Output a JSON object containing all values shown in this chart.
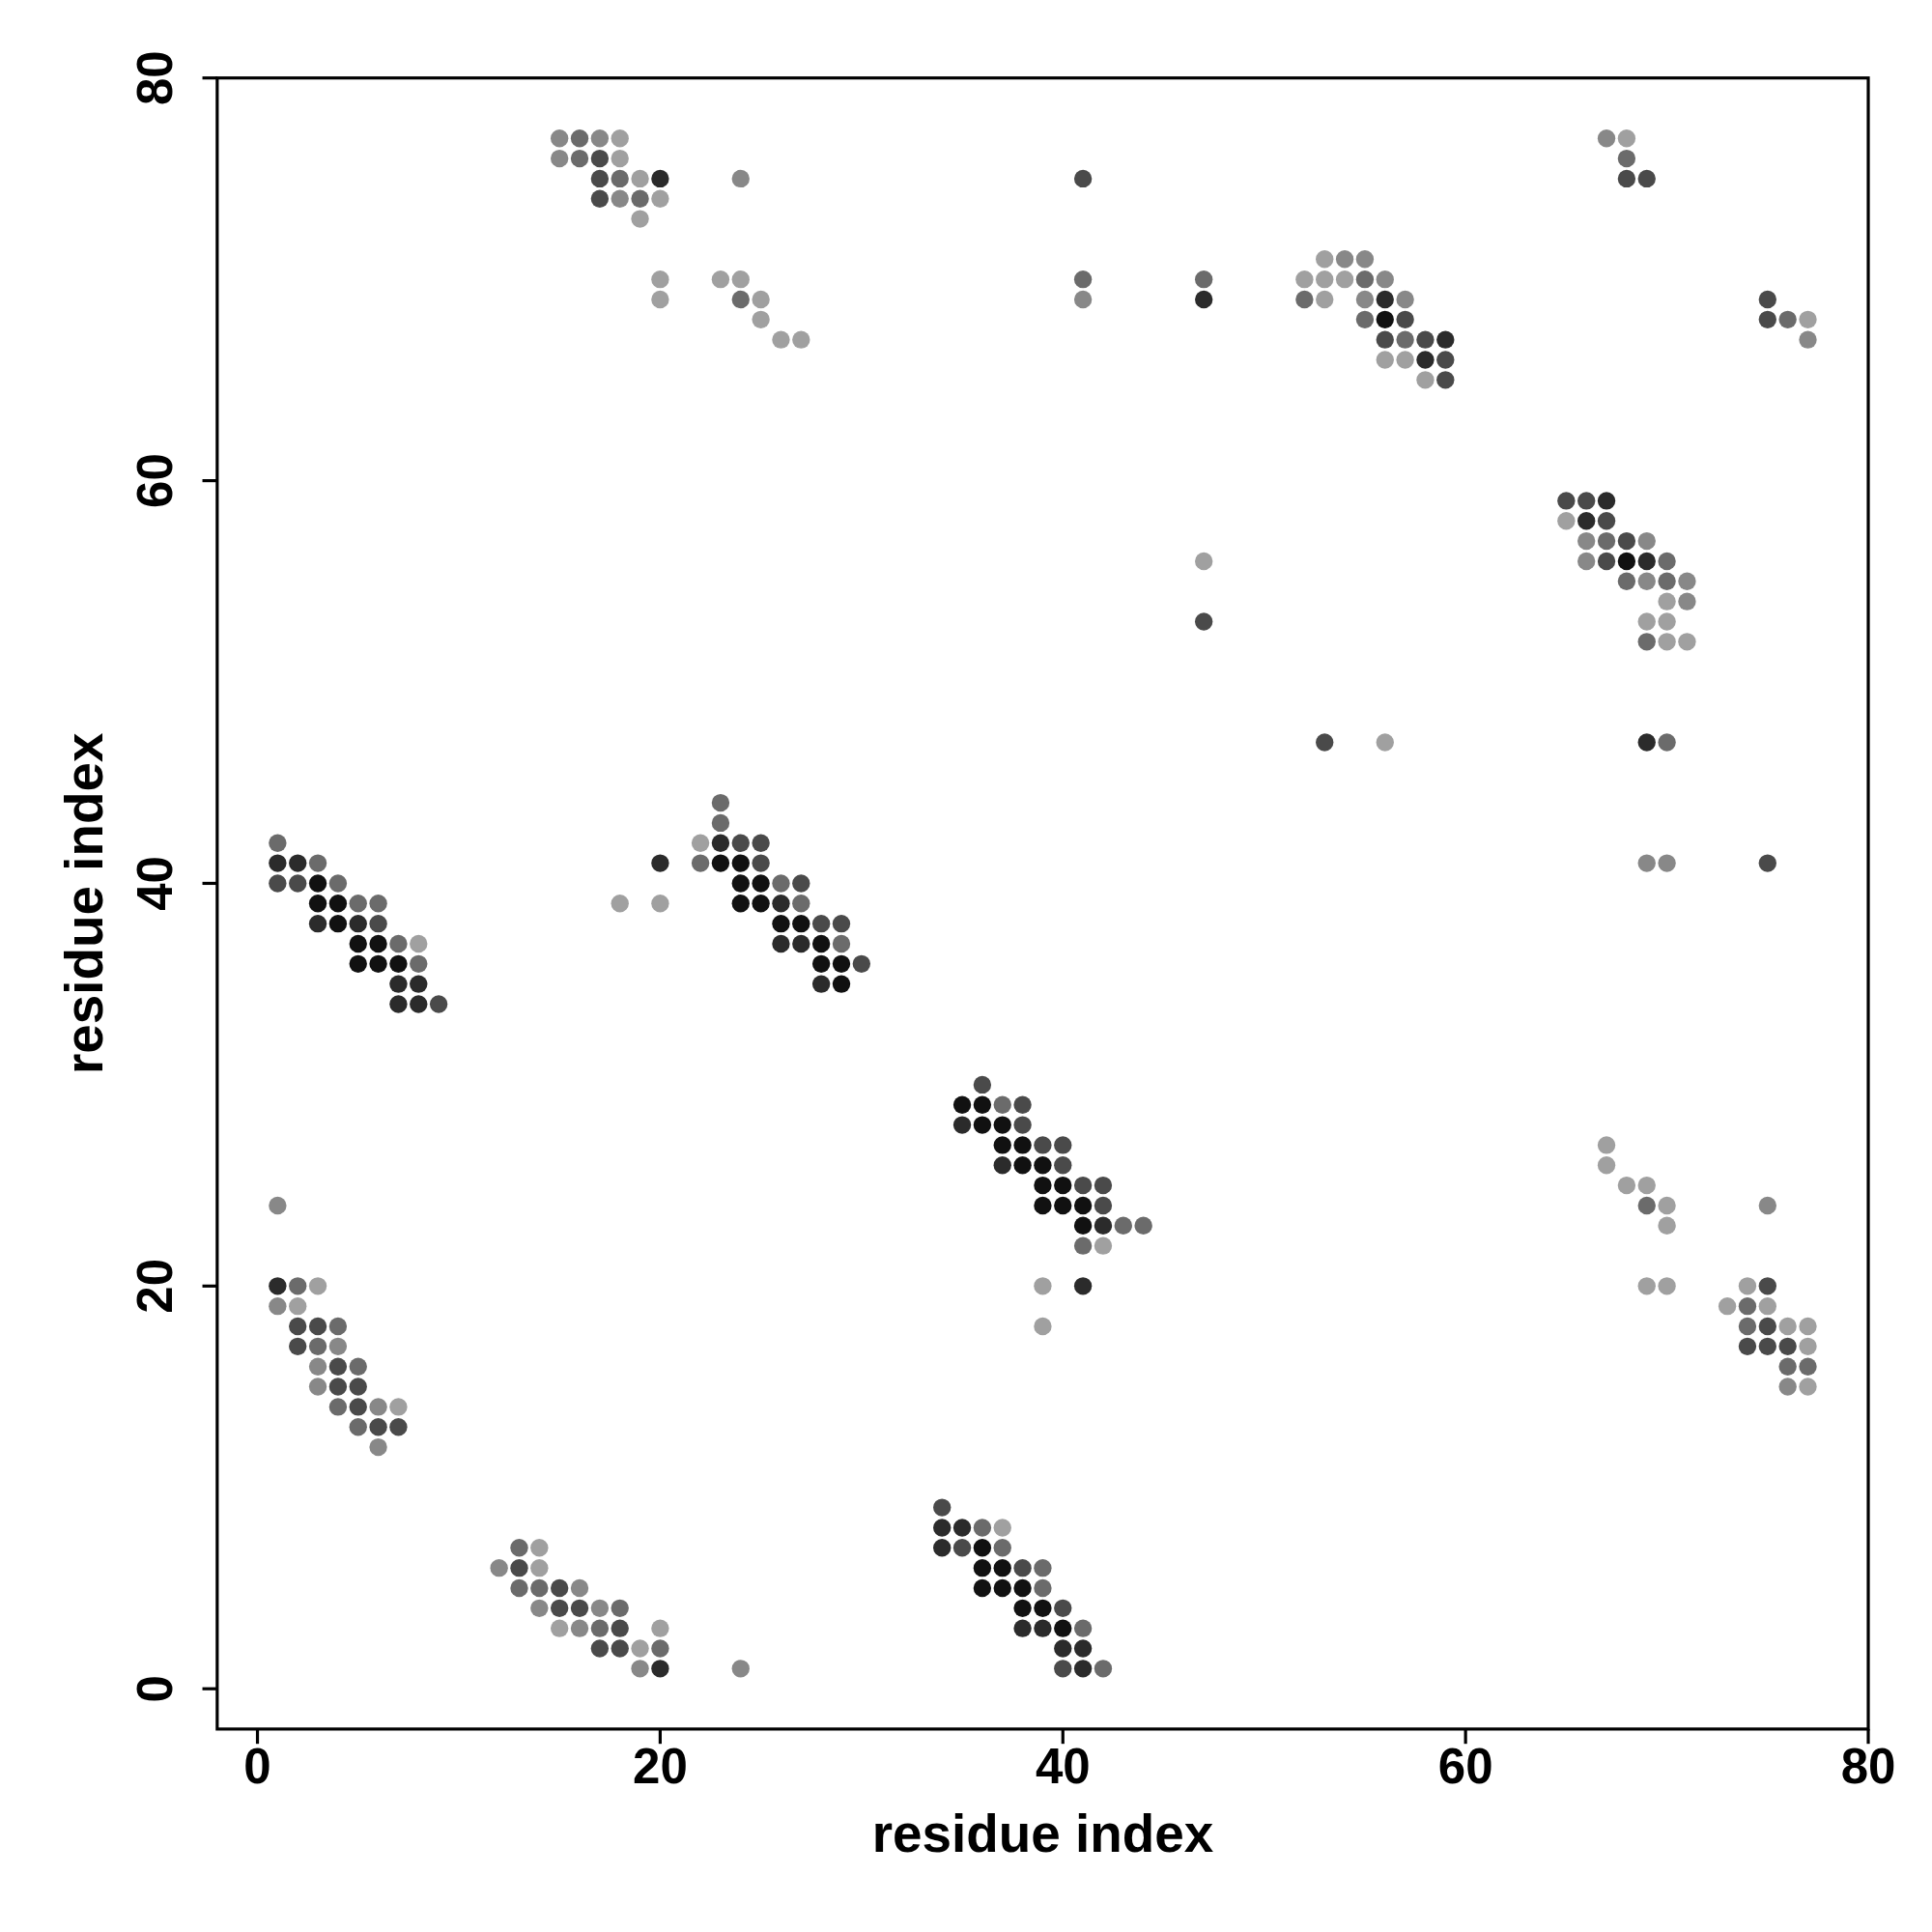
{
  "chart_data": {
    "type": "scatter",
    "xlabel": "residue index",
    "ylabel": "residue index",
    "xlim": [
      -2,
      80
    ],
    "ylim": [
      -2,
      80
    ],
    "xticks": [
      0,
      20,
      40,
      60,
      80
    ],
    "yticks": [
      0,
      20,
      40,
      60,
      80
    ],
    "marker": "circle",
    "series": [
      {
        "color": "#111111",
        "x": [
          56,
          68,
          3,
          3,
          4,
          4,
          5,
          6,
          5,
          6,
          7,
          23,
          24,
          24,
          25,
          24,
          25,
          26,
          27,
          28,
          28,
          29,
          29,
          35,
          36,
          36,
          37,
          37,
          38,
          38,
          39,
          39,
          40,
          39,
          40,
          41,
          41,
          36,
          36,
          37,
          36,
          37,
          38,
          38,
          39,
          40
        ],
        "values": [
          68,
          56,
          40,
          39,
          39,
          38,
          37,
          37,
          36,
          36,
          36,
          41,
          41,
          40,
          40,
          39,
          39,
          38,
          38,
          37,
          36,
          36,
          35,
          29,
          29,
          28,
          28,
          27,
          27,
          26,
          26,
          25,
          25,
          24,
          24,
          24,
          23,
          7,
          6,
          6,
          5,
          5,
          5,
          4,
          4,
          3
        ]
      },
      {
        "color": "#2b2b2b",
        "x": [
          20,
          47,
          56,
          59,
          58,
          67,
          66,
          69,
          69,
          1,
          2,
          3,
          5,
          7,
          8,
          7,
          8,
          20,
          23,
          26,
          26,
          27,
          28,
          35,
          37,
          42,
          41,
          34,
          35,
          34,
          38,
          39,
          40,
          41,
          41,
          1,
          20
        ],
        "values": [
          75,
          69,
          69,
          67,
          66,
          59,
          58,
          56,
          47,
          41,
          41,
          38,
          38,
          35,
          35,
          34,
          34,
          41,
          42,
          39,
          37,
          37,
          35,
          28,
          26,
          23,
          20,
          8,
          8,
          7,
          3,
          3,
          2,
          2,
          1,
          20,
          1
        ]
      },
      {
        "color": "#4a4a4a",
        "x": [
          17,
          17,
          17,
          41,
          57,
          56,
          58,
          59,
          59,
          68,
          69,
          75,
          75,
          65,
          66,
          67,
          68,
          67,
          53,
          75,
          47,
          1,
          2,
          6,
          9,
          24,
          25,
          25,
          27,
          28,
          29,
          30,
          36,
          38,
          38,
          39,
          40,
          40,
          41,
          42,
          42,
          34,
          35,
          38,
          40,
          40,
          2,
          3,
          2,
          4,
          4,
          5,
          5,
          6,
          7,
          13,
          15,
          15,
          16,
          18,
          17,
          18,
          75,
          75,
          74,
          75,
          76
        ],
        "values": [
          76,
          75,
          74,
          75,
          68,
          67,
          67,
          66,
          65,
          75,
          75,
          69,
          68,
          59,
          59,
          58,
          57,
          56,
          47,
          41,
          53,
          40,
          40,
          38,
          34,
          42,
          42,
          41,
          40,
          38,
          38,
          36,
          30,
          29,
          28,
          27,
          27,
          26,
          25,
          25,
          24,
          9,
          7,
          6,
          4,
          1,
          18,
          18,
          17,
          16,
          15,
          15,
          14,
          13,
          13,
          6,
          5,
          4,
          4,
          3,
          2,
          2,
          20,
          18,
          17,
          17,
          17
        ]
      },
      {
        "color": "#6b6b6b",
        "x": [
          16,
          16,
          18,
          19,
          24,
          41,
          47,
          55,
          52,
          55,
          57,
          68,
          76,
          67,
          70,
          68,
          70,
          69,
          70,
          1,
          3,
          4,
          5,
          6,
          7,
          8,
          23,
          23,
          22,
          26,
          27,
          29,
          37,
          43,
          44,
          41,
          36,
          37,
          39,
          39,
          41,
          42,
          2,
          4,
          3,
          5,
          4,
          5,
          13,
          13,
          14,
          18,
          17,
          20,
          69,
          74,
          74,
          76,
          77
        ],
        "values": [
          77,
          76,
          75,
          74,
          69,
          70,
          70,
          70,
          69,
          68,
          67,
          76,
          68,
          57,
          56,
          55,
          55,
          52,
          47,
          42,
          41,
          40,
          39,
          39,
          37,
          36,
          44,
          43,
          41,
          40,
          39,
          37,
          29,
          23,
          23,
          22,
          8,
          7,
          6,
          5,
          3,
          1,
          20,
          18,
          17,
          16,
          14,
          13,
          7,
          5,
          5,
          4,
          3,
          2,
          24,
          19,
          18,
          16,
          16
        ]
      },
      {
        "color": "#888888",
        "x": [
          15,
          17,
          15,
          24,
          18,
          41,
          54,
          55,
          56,
          55,
          57,
          67,
          77,
          66,
          69,
          66,
          69,
          71,
          71,
          69,
          70,
          1,
          1,
          4,
          3,
          3,
          6,
          6,
          12,
          16,
          14,
          17,
          16,
          19,
          24,
          75,
          76
        ],
        "values": [
          77,
          77,
          76,
          75,
          74,
          69,
          71,
          71,
          70,
          69,
          69,
          77,
          67,
          57,
          57,
          56,
          55,
          55,
          54,
          41,
          41,
          24,
          19,
          17,
          16,
          15,
          14,
          12,
          6,
          5,
          4,
          4,
          3,
          1,
          1,
          24,
          15
        ]
      },
      {
        "color": "#a0a0a0",
        "x": [
          18,
          18,
          19,
          20,
          19,
          20,
          23,
          24,
          20,
          25,
          25,
          26,
          27,
          53,
          52,
          53,
          54,
          53,
          56,
          57,
          58,
          68,
          77,
          65,
          70,
          69,
          70,
          71,
          70,
          56,
          47,
          8,
          18,
          20,
          22,
          42,
          39,
          39,
          37,
          3,
          2,
          7,
          14,
          14,
          15,
          20,
          19,
          67,
          67,
          68,
          69,
          70,
          70,
          69,
          70,
          74,
          73,
          75,
          76,
          77,
          77,
          77
        ],
        "values": [
          77,
          76,
          75,
          74,
          73,
          70,
          70,
          70,
          69,
          69,
          68,
          67,
          67,
          71,
          70,
          70,
          70,
          69,
          66,
          66,
          65,
          77,
          68,
          58,
          54,
          53,
          53,
          52,
          52,
          47,
          56,
          37,
          39,
          39,
          42,
          22,
          20,
          18,
          8,
          20,
          19,
          14,
          7,
          6,
          3,
          3,
          2,
          27,
          26,
          25,
          25,
          24,
          23,
          20,
          20,
          20,
          19,
          19,
          18,
          18,
          17,
          15
        ]
      }
    ]
  }
}
